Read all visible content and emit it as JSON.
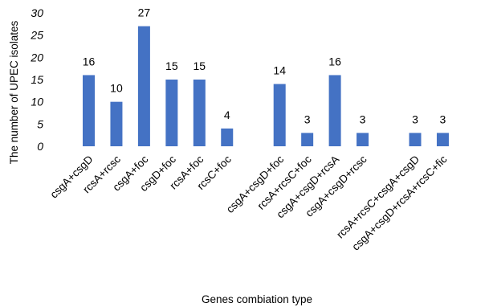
{
  "chart_data": {
    "type": "bar",
    "title": "",
    "xlabel": "Genes combiation type",
    "ylabel": "The number of UPEC isolates",
    "ylim": [
      0,
      30
    ],
    "yticks": [
      0,
      5,
      10,
      15,
      20,
      25,
      30
    ],
    "grid": false,
    "legend": "none",
    "bar_color": "#4472C4",
    "categories": [
      "csgA+csgD",
      "rcsA+rcsc",
      "csgA+foc",
      "csgD+foc",
      "rcsA+foc",
      "rcsC+foc",
      "csgA+csgD+foc",
      "rcsA+rcsC+foc",
      "csgA+csgD+rcsA",
      "csgA+csgD+rcsc",
      "rcsA+rcsC+csgA+csgD",
      "csgA+csgD+rcsA+rcsC+fic"
    ],
    "groups": [
      6,
      4,
      2
    ],
    "values": [
      16,
      10,
      27,
      15,
      15,
      4,
      14,
      3,
      16,
      3,
      3,
      3
    ]
  }
}
